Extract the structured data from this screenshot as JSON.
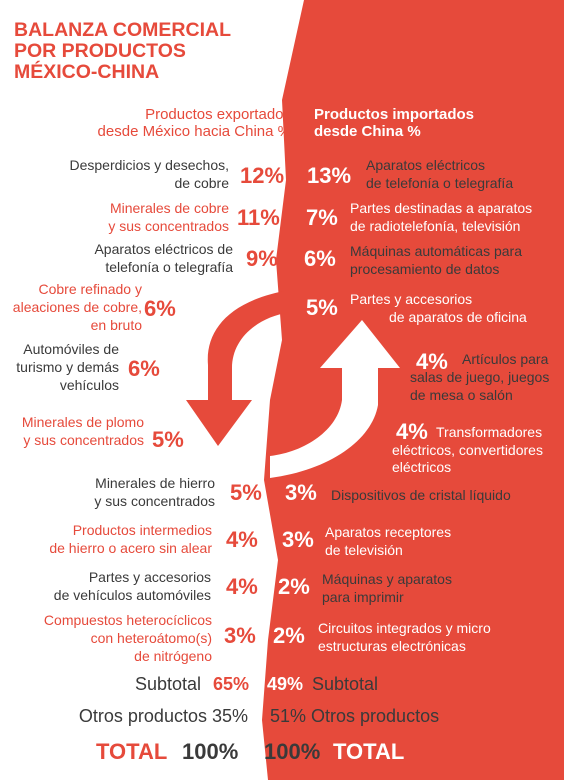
{
  "title": [
    "BALANZA COMERCIAL",
    "POR PRODUCTOS",
    "MÉXICO-CHINA"
  ],
  "colors": {
    "accent": "#e64a3b",
    "text": "#3a3a3a",
    "white": "#ffffff"
  },
  "headers": {
    "exports": [
      "Productos exportados",
      "desde México hacia China  %"
    ],
    "imports": [
      "Productos importados",
      "desde China %"
    ]
  },
  "exports": [
    {
      "label": [
        "Desperdicios y desechos,",
        "de cobre"
      ],
      "pct": "12%"
    },
    {
      "label": [
        "Minerales de cobre",
        "y sus concentrados"
      ],
      "pct": "11%"
    },
    {
      "label": [
        "Aparatos eléctricos de",
        "telefonía o telegrafía"
      ],
      "pct": "9%"
    },
    {
      "label": [
        "Cobre refinado y",
        "aleaciones de cobre,",
        "en bruto"
      ],
      "pct": "6%"
    },
    {
      "label": [
        "Automóviles de",
        "turismo y demás",
        "vehículos"
      ],
      "pct": "6%"
    },
    {
      "label": [
        "Minerales de plomo",
        "y sus concentrados"
      ],
      "pct": "5%"
    },
    {
      "label": [
        "Minerales de hierro",
        "y sus concentrados"
      ],
      "pct": "5%"
    },
    {
      "label": [
        "Productos intermedios",
        "de hierro o acero sin alear"
      ],
      "pct": "4%"
    },
    {
      "label": [
        "Partes y accesorios",
        "de vehículos automóviles"
      ],
      "pct": "4%"
    },
    {
      "label": [
        "Compuestos heterocíclicos",
        "con heteroátomo(s)",
        "de nitrógeno"
      ],
      "pct": "3%"
    }
  ],
  "imports": [
    {
      "pct": "13%",
      "label": [
        "Aparatos eléctricos",
        "de telefonía o telegrafía"
      ]
    },
    {
      "pct": "7%",
      "label": [
        "Partes destinadas a aparatos",
        "de radiotelefonía, televisión"
      ]
    },
    {
      "pct": "6%",
      "label": [
        "Máquinas automáticas para",
        "procesamiento de datos"
      ]
    },
    {
      "pct": "5%",
      "label": [
        "Partes y accesorios",
        "de aparatos de oficina"
      ]
    },
    {
      "pct": "4%",
      "label": [
        "Artículos para",
        "salas de juego, juegos",
        "de mesa o salón"
      ]
    },
    {
      "pct": "4%",
      "label": [
        "Transformadores",
        "eléctricos, convertidores",
        "eléctricos"
      ]
    },
    {
      "pct": "3%",
      "label": [
        "Dispositivos de cristal líquido"
      ]
    },
    {
      "pct": "3%",
      "label": [
        "Aparatos receptores",
        "de televisión"
      ]
    },
    {
      "pct": "2%",
      "label": [
        "Máquinas y aparatos",
        "para imprimir"
      ]
    },
    {
      "pct": "2%",
      "label": [
        "Circuitos integrados y micro",
        "estructuras electrónicas"
      ]
    }
  ],
  "summary": {
    "left_subtotal_label": "Subtotal",
    "left_subtotal_value": "65%",
    "right_subtotal_value": "49%",
    "right_subtotal_label": "Subtotal",
    "left_others": "Otros productos 35%",
    "right_others": "51% Otros productos",
    "left_total_label": "TOTAL",
    "left_total_value": "100%",
    "right_total_value": "100%",
    "right_total_label": "TOTAL"
  }
}
